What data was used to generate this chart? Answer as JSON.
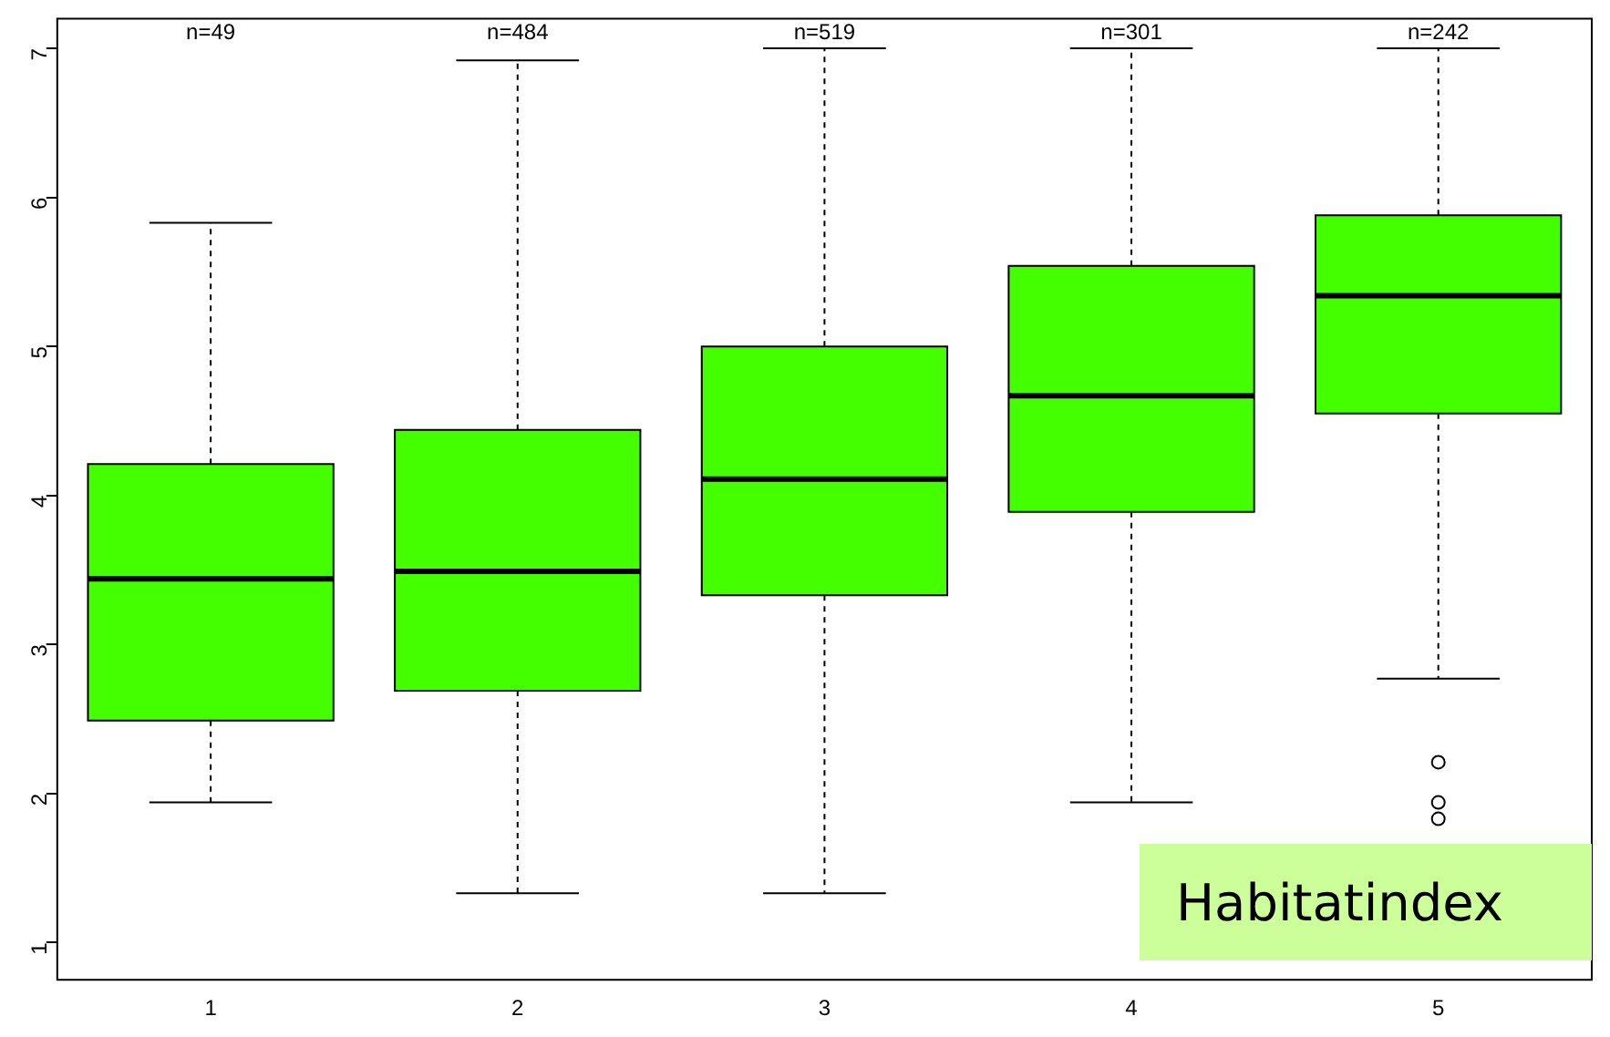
{
  "chart_data": {
    "type": "box",
    "categories": [
      "1",
      "2",
      "3",
      "4",
      "5"
    ],
    "color": "#44ff00",
    "boxes": [
      {
        "low": 1.94,
        "q1": 2.49,
        "median": 3.44,
        "q3": 4.21,
        "high": 5.83
      },
      {
        "low": 1.33,
        "q1": 2.69,
        "median": 3.49,
        "q3": 4.44,
        "high": 6.92
      },
      {
        "low": 1.33,
        "q1": 3.33,
        "median": 4.11,
        "q3": 5.0,
        "high": 7.0
      },
      {
        "low": 1.94,
        "q1": 3.89,
        "median": 4.67,
        "q3": 5.54,
        "high": 7.0
      },
      {
        "low": 2.77,
        "q1": 4.55,
        "median": 5.34,
        "q3": 5.88,
        "high": 7.0,
        "outliers": [
          2.21,
          1.94,
          1.83
        ]
      }
    ],
    "ylim": [
      0.75,
      7.2
    ],
    "yticks": [
      1,
      2,
      3,
      4,
      5,
      6,
      7
    ],
    "grid": false,
    "legend": false,
    "annotations": [
      "n=49",
      "n=484",
      "n=519",
      "n=301",
      "n=242",
      "Habitatindex"
    ]
  }
}
